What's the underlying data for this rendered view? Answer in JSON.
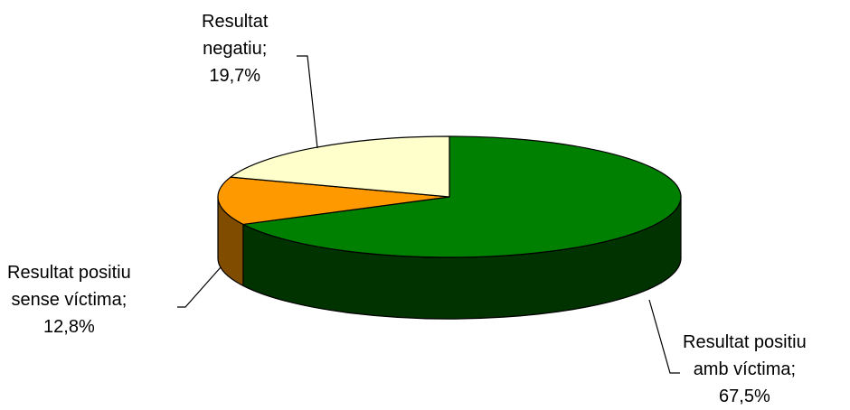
{
  "chart_data": {
    "type": "pie",
    "style": "3d",
    "legend": "none",
    "slices": [
      {
        "label_lines": [
          "Resultat positiu",
          "amb víctima;",
          "67,5%"
        ],
        "value": 67.5,
        "top_color": "#008000",
        "side_color": "#003300"
      },
      {
        "label_lines": [
          "Resultat positiu",
          "sense víctima;",
          "12,8%"
        ],
        "value": 12.8,
        "top_color": "#ff9900",
        "side_color": "#7f4c00"
      },
      {
        "label_lines": [
          "Resultat",
          "negatiu;",
          "19,7%"
        ],
        "value": 19.7,
        "top_color": "#ffffcc",
        "side_color": "#7f7f66"
      }
    ]
  }
}
